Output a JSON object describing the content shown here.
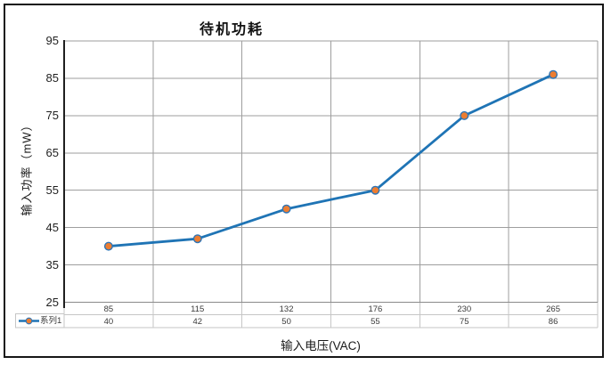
{
  "window": {
    "background": "#ffffff",
    "frame_border_color": "#161616"
  },
  "chart_data": {
    "type": "line",
    "title": "待机功耗",
    "xlabel": "输入电压(VAC)",
    "ylabel": "输入功率（mW）",
    "categories": [
      "85",
      "115",
      "132",
      "176",
      "230",
      "265"
    ],
    "series": [
      {
        "name": "系列1",
        "values": [
          40,
          42,
          50,
          55,
          75,
          86
        ]
      }
    ],
    "ylim": [
      25,
      95
    ],
    "y_ticks": [
      95,
      85,
      75,
      65,
      55,
      45,
      35,
      25
    ],
    "grid": true,
    "data_table_shown": true,
    "legend_position": "bottom-left-in-data-table",
    "colors": {
      "line": "#1F74B5",
      "marker_fill": "#ED7D31",
      "marker_stroke": "#2E75B6",
      "plot_grid": "#9E9E9E",
      "table_border": "#C6C6C6",
      "axis": "#1f1f1f",
      "bottom_axis": "#8a8a8a",
      "tick_text": "#1f1f1f",
      "table_text": "#3a3a3a"
    }
  }
}
